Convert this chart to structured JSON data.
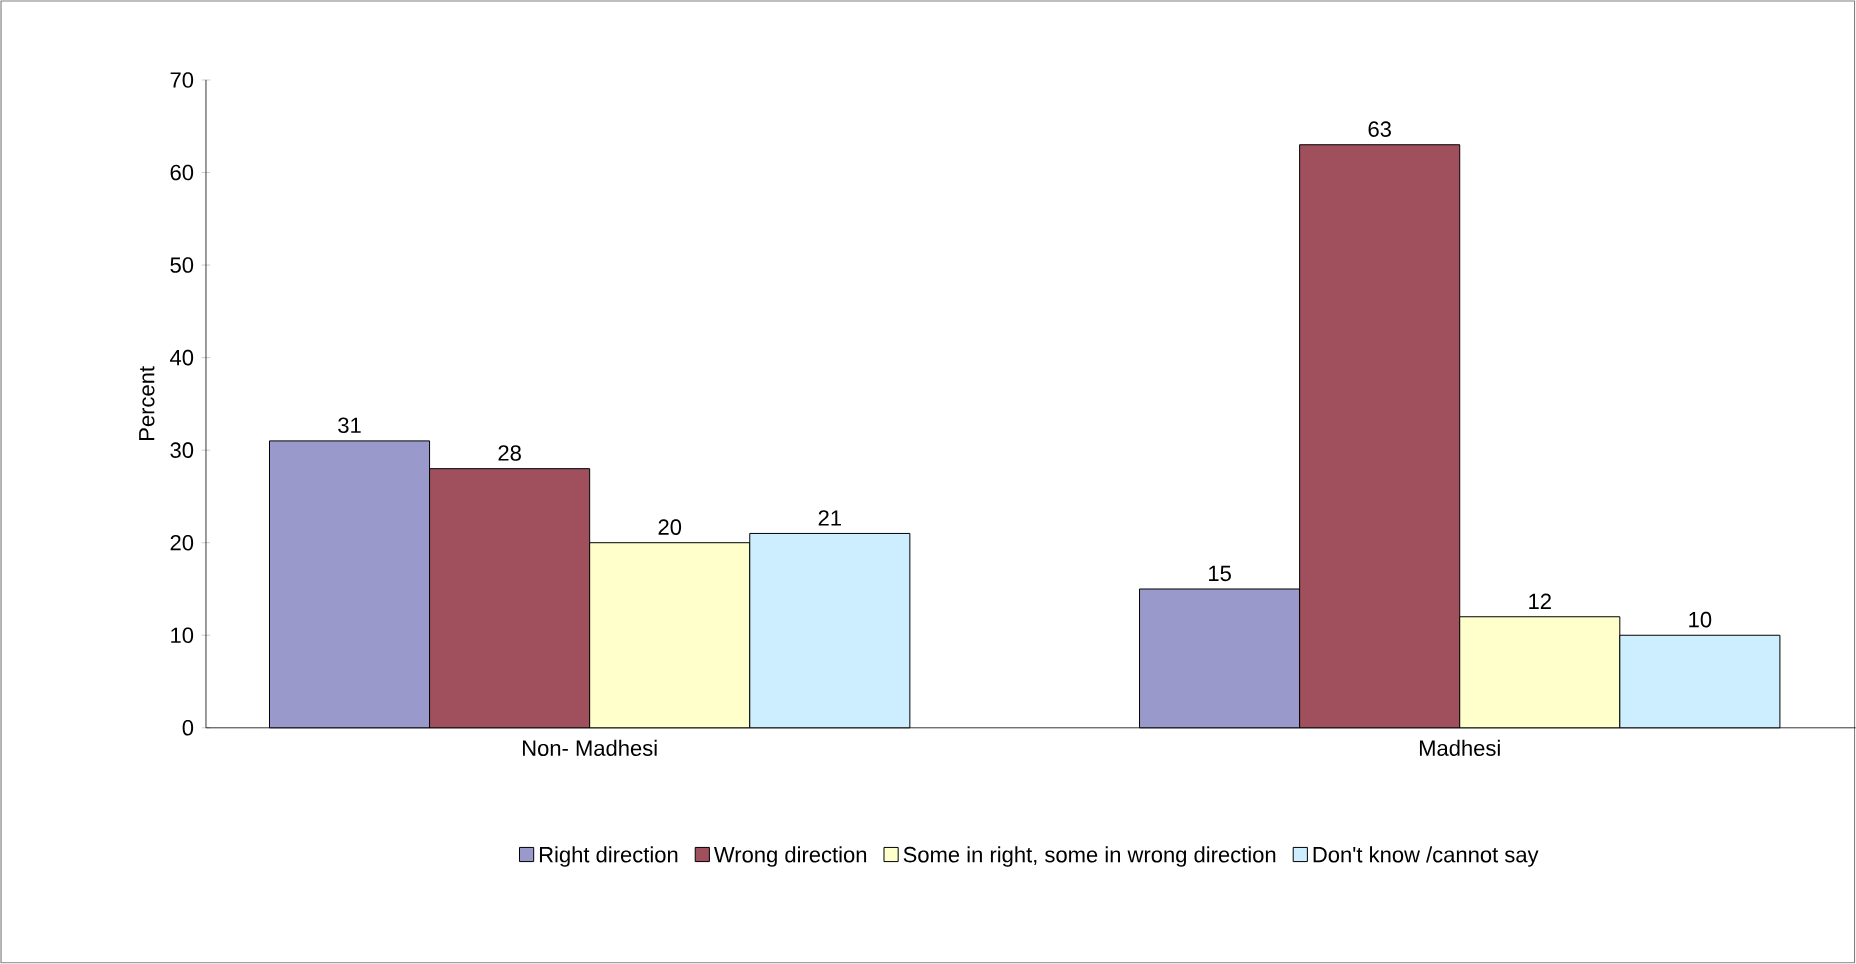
{
  "chart_data": {
    "type": "bar",
    "ylabel": "Percent",
    "categories": [
      "Non- Madhesi",
      "Madhesi"
    ],
    "series": [
      {
        "name": "Right direction",
        "color": "#9999cc",
        "values": [
          31,
          15
        ]
      },
      {
        "name": "Wrong direction",
        "color": "#a0505c",
        "values": [
          28,
          63
        ]
      },
      {
        "name": "Some in right, some in wrong direction",
        "color": "#ffffcc",
        "values": [
          20,
          12
        ]
      },
      {
        "name": "Don't know /cannot say",
        "color": "#cceeff",
        "values": [
          21,
          10
        ]
      }
    ],
    "ylim": [
      0,
      70
    ],
    "yticks": [
      0,
      10,
      20,
      30,
      40,
      50,
      60,
      70
    ],
    "data_labels": true,
    "legend": "bottom"
  }
}
